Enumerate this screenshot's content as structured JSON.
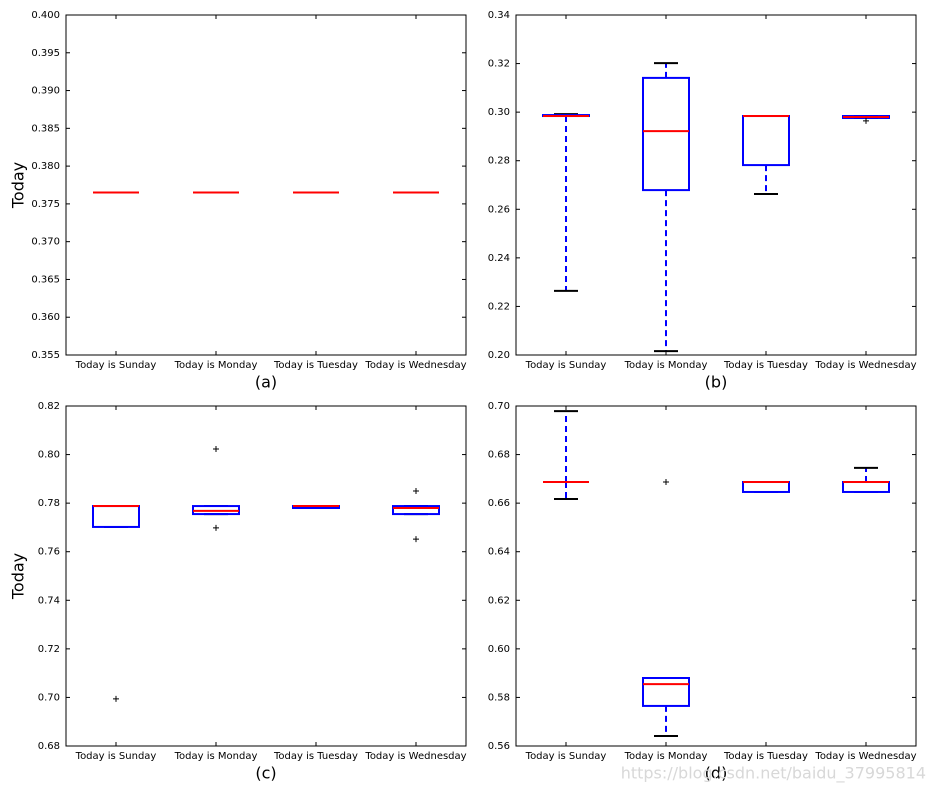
{
  "chart_data": [
    {
      "type": "box",
      "xlabel": "(a)",
      "ylabel": "Today",
      "categories": [
        "Today is Sunday",
        "Today is Monday",
        "Today is Tuesday",
        "Today is Wednesday"
      ],
      "stats": [
        {
          "min": 0.3765,
          "q1": 0.3765,
          "median": 0.3765,
          "q3": 0.3765,
          "max": 0.3765
        },
        {
          "min": 0.3765,
          "q1": 0.3765,
          "median": 0.3765,
          "q3": 0.3765,
          "max": 0.3765
        },
        {
          "min": 0.3765,
          "q1": 0.3765,
          "median": 0.3765,
          "q3": 0.3765,
          "max": 0.3765
        },
        {
          "min": 0.3765,
          "q1": 0.3765,
          "median": 0.3765,
          "q3": 0.3765,
          "max": 0.3765
        }
      ],
      "ylim": [
        0.355,
        0.4
      ],
      "yticks": [
        0.355,
        {
          "value": 0.36,
          "label": "0.360"
        },
        0.365,
        {
          "value": 0.37,
          "label": "0.370"
        },
        0.375,
        {
          "value": 0.38,
          "label": "0.380"
        },
        0.385,
        {
          "value": 0.39,
          "label": "0.390"
        },
        0.395,
        {
          "value": 0.4,
          "label": "0.400"
        }
      ],
      "box_color": "#0000ff",
      "median_color": "#ff0000",
      "cap_color": "#000000"
    },
    {
      "type": "box",
      "xlabel": "(b)",
      "categories": [
        "Today is Sunday",
        "Today is Monday",
        "Today is Tuesday",
        "Today is Wednesday"
      ],
      "stats": [
        {
          "min": 0.2264,
          "q1": 0.2984,
          "median": 0.2984,
          "q3": 0.2988,
          "max": 0.2992
        },
        {
          "min": 0.2016,
          "q1": 0.2679,
          "median": 0.2922,
          "q3": 0.3141,
          "max": 0.3202
        },
        {
          "min": 0.2663,
          "q1": 0.2782,
          "median": 0.2984,
          "q3": 0.2984,
          "max": 0.2984
        },
        {
          "min": 0.2976,
          "q1": 0.2976,
          "median": 0.298,
          "q3": 0.2984,
          "max": 0.2984,
          "fliers": [
            0.2964
          ]
        }
      ],
      "ylim": [
        0.2,
        0.34
      ],
      "yticks": [
        {
          "value": 0.2,
          "label": "0.20"
        },
        0.22,
        0.24,
        0.26,
        0.28,
        {
          "value": 0.3,
          "label": "0.30"
        },
        0.32,
        0.34
      ],
      "box_color": "#0000ff",
      "median_color": "#ff0000",
      "cap_color": "#000000"
    },
    {
      "type": "box",
      "xlabel": "(c)",
      "ylabel": "Today",
      "categories": [
        "Today is Sunday",
        "Today is Monday",
        "Today is Tuesday",
        "Today is Wednesday"
      ],
      "stats": [
        {
          "min": 0.7702,
          "q1": 0.7702,
          "median": 0.7788,
          "q3": 0.7788,
          "max": 0.7788,
          "fliers": [
            0.6994
          ]
        },
        {
          "min": 0.7755,
          "q1": 0.7755,
          "median": 0.7768,
          "q3": 0.7788,
          "max": 0.7788,
          "fliers": [
            0.8023,
            0.7698
          ]
        },
        {
          "min": 0.778,
          "q1": 0.778,
          "median": 0.7788,
          "q3": 0.7788,
          "max": 0.7788
        },
        {
          "min": 0.7755,
          "q1": 0.7755,
          "median": 0.778,
          "q3": 0.7788,
          "max": 0.7788,
          "fliers": [
            0.785,
            0.7652
          ]
        }
      ],
      "ylim": [
        0.68,
        0.82
      ],
      "yticks": [
        0.68,
        {
          "value": 0.7,
          "label": "0.70"
        },
        0.72,
        0.74,
        0.76,
        0.78,
        {
          "value": 0.8,
          "label": "0.80"
        },
        0.82
      ],
      "box_color": "#0000ff",
      "median_color": "#ff0000",
      "cap_color": "#000000"
    },
    {
      "type": "box",
      "xlabel": "(d)",
      "categories": [
        "Today is Sunday",
        "Today is Monday",
        "Today is Tuesday",
        "Today is Wednesday"
      ],
      "stats": [
        {
          "min": 0.6617,
          "q1": 0.6687,
          "median": 0.6687,
          "q3": 0.6687,
          "max": 0.6979
        },
        {
          "min": 0.5641,
          "q1": 0.5765,
          "median": 0.5855,
          "q3": 0.588,
          "max": 0.588,
          "fliers": [
            0.6687
          ]
        },
        {
          "min": 0.6646,
          "q1": 0.6646,
          "median": 0.6687,
          "q3": 0.6687,
          "max": 0.6687
        },
        {
          "min": 0.6646,
          "q1": 0.6646,
          "median": 0.6687,
          "q3": 0.6687,
          "max": 0.6745
        }
      ],
      "ylim": [
        0.56,
        0.7
      ],
      "yticks": [
        0.56,
        0.58,
        {
          "value": 0.6,
          "label": "0.60"
        },
        0.62,
        0.64,
        0.66,
        0.68,
        {
          "value": 0.7,
          "label": "0.70"
        }
      ],
      "box_color": "#0000ff",
      "median_color": "#ff0000",
      "cap_color": "#000000"
    }
  ],
  "watermark": "https://blog.csdn.net/baidu_37995814"
}
